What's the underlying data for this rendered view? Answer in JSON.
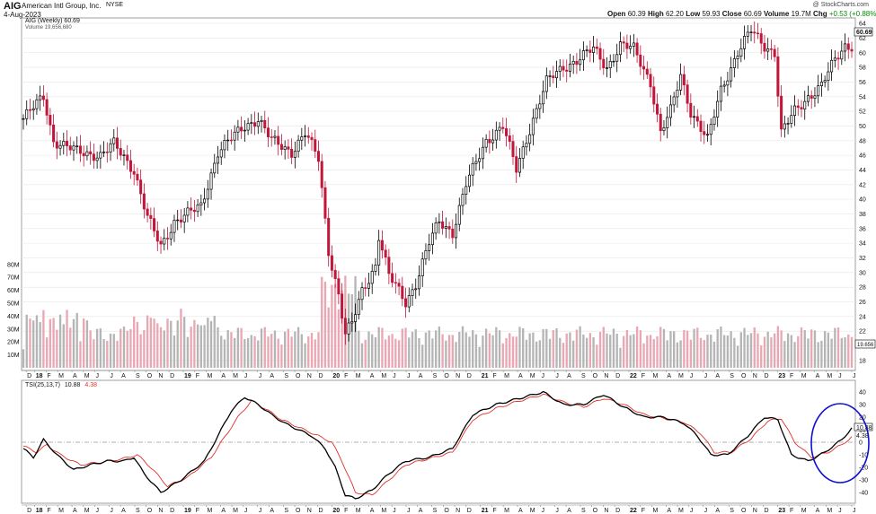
{
  "header": {
    "symbol": "AIG",
    "company": "American Intl Group, Inc.",
    "exchange": "NYSE",
    "date": "4-Aug-2023",
    "watermark": "@ StockCharts.com",
    "stats": {
      "open_label": "Open",
      "open": "60.39",
      "high_label": "High",
      "high": "62.20",
      "low_label": "Low",
      "low": "59.93",
      "close_label": "Close",
      "close": "60.69",
      "volume_label": "Volume",
      "volume": "19.7M",
      "chg_label": "Chg",
      "chg": "+0.53 (+0.88%)"
    }
  },
  "chart_data": [
    {
      "type": "candlestick",
      "legend": "AIG (Weekly) 60.69",
      "volume_legend": "Volume 19,656,680",
      "last_price_label": "60.69",
      "last_volume_label": "19.656",
      "price_ticks": [
        18,
        20,
        22,
        24,
        26,
        28,
        30,
        32,
        34,
        36,
        38,
        40,
        42,
        44,
        46,
        48,
        50,
        52,
        54,
        56,
        58,
        60,
        62,
        64
      ],
      "volume_ticks": [
        "10M",
        "20M",
        "30M",
        "40M",
        "50M",
        "60M",
        "70M",
        "80M"
      ],
      "ylim": [
        17,
        64.5
      ],
      "colors": {
        "up": "#000000",
        "down": "#c0163a",
        "vol_up": "#b5b5b5",
        "vol_down": "#e9a7b3"
      },
      "anchors": [
        [
          0,
          51
        ],
        [
          6,
          54
        ],
        [
          9,
          48
        ],
        [
          16,
          46.5
        ],
        [
          23,
          46
        ],
        [
          27,
          47.5
        ],
        [
          33,
          44
        ],
        [
          37,
          37.5
        ],
        [
          41,
          33.5
        ],
        [
          45,
          37
        ],
        [
          53,
          39
        ],
        [
          58,
          46.5
        ],
        [
          66,
          50
        ],
        [
          70,
          51
        ],
        [
          74,
          48
        ],
        [
          80,
          46.5
        ],
        [
          84,
          49
        ],
        [
          88,
          45.5
        ],
        [
          91,
          33
        ],
        [
          94,
          27
        ],
        [
          96,
          21.5
        ],
        [
          98,
          23
        ],
        [
          101,
          27.5
        ],
        [
          105,
          31
        ],
        [
          106,
          35
        ],
        [
          109,
          29.5
        ],
        [
          112,
          27.5
        ],
        [
          114,
          26
        ],
        [
          117,
          28.5
        ],
        [
          121,
          34
        ],
        [
          124,
          37
        ],
        [
          128,
          35.5
        ],
        [
          132,
          42
        ],
        [
          138,
          48
        ],
        [
          143,
          50
        ],
        [
          147,
          44
        ],
        [
          152,
          51
        ],
        [
          156,
          56
        ],
        [
          161,
          58
        ],
        [
          165,
          59
        ],
        [
          170,
          60.5
        ],
        [
          174,
          58
        ],
        [
          178,
          61
        ],
        [
          182,
          60.5
        ],
        [
          187,
          56
        ],
        [
          190,
          49
        ],
        [
          193,
          52
        ],
        [
          196,
          57
        ],
        [
          199,
          52
        ],
        [
          204,
          48
        ],
        [
          208,
          55
        ],
        [
          213,
          60
        ],
        [
          217,
          63
        ],
        [
          221,
          61
        ],
        [
          224,
          60
        ],
        [
          226,
          49
        ],
        [
          230,
          52
        ],
        [
          234,
          54
        ],
        [
          238,
          55.5
        ],
        [
          242,
          59
        ],
        [
          245,
          61
        ],
        [
          247,
          61
        ]
      ]
    },
    {
      "type": "line",
      "legend_prefix": "TSI(25,13,7)",
      "tsi_label": "10.88",
      "signal_label": "4.38",
      "yticks": [
        40,
        30,
        20,
        10,
        0,
        -10,
        -20,
        -30,
        -40
      ],
      "ylim": [
        -45,
        45
      ],
      "tsi_anchors": [
        [
          0,
          -5
        ],
        [
          3,
          -12
        ],
        [
          6,
          2
        ],
        [
          10,
          -10
        ],
        [
          15,
          -22
        ],
        [
          20,
          -18
        ],
        [
          25,
          -15
        ],
        [
          30,
          -15
        ],
        [
          33,
          -12
        ],
        [
          36,
          -25
        ],
        [
          41,
          -40
        ],
        [
          47,
          -30
        ],
        [
          54,
          -15
        ],
        [
          59,
          10
        ],
        [
          62,
          25
        ],
        [
          66,
          36
        ],
        [
          70,
          30
        ],
        [
          74,
          22
        ],
        [
          78,
          15
        ],
        [
          82,
          10
        ],
        [
          86,
          5
        ],
        [
          90,
          -5
        ],
        [
          93,
          -20
        ],
        [
          96,
          -42
        ],
        [
          99,
          -45
        ],
        [
          104,
          -38
        ],
        [
          109,
          -25
        ],
        [
          114,
          -15
        ],
        [
          121,
          -12
        ],
        [
          128,
          -5
        ],
        [
          134,
          22
        ],
        [
          141,
          30
        ],
        [
          148,
          35
        ],
        [
          155,
          40
        ],
        [
          161,
          30
        ],
        [
          167,
          30
        ],
        [
          173,
          38
        ],
        [
          179,
          28
        ],
        [
          185,
          20
        ],
        [
          191,
          20
        ],
        [
          197,
          15
        ],
        [
          201,
          5
        ],
        [
          205,
          -10
        ],
        [
          210,
          -10
        ],
        [
          216,
          5
        ],
        [
          221,
          20
        ],
        [
          225,
          18
        ],
        [
          229,
          -10
        ],
        [
          234,
          -15
        ],
        [
          239,
          -8
        ],
        [
          244,
          2
        ],
        [
          247,
          11
        ]
      ],
      "signal_anchors": [
        [
          0,
          -3
        ],
        [
          4,
          -8
        ],
        [
          7,
          -2
        ],
        [
          11,
          -10
        ],
        [
          17,
          -18
        ],
        [
          23,
          -16
        ],
        [
          30,
          -13
        ],
        [
          34,
          -10
        ],
        [
          38,
          -20
        ],
        [
          43,
          -35
        ],
        [
          49,
          -28
        ],
        [
          56,
          -12
        ],
        [
          61,
          8
        ],
        [
          64,
          20
        ],
        [
          68,
          33
        ],
        [
          72,
          27
        ],
        [
          77,
          18
        ],
        [
          82,
          12
        ],
        [
          88,
          5
        ],
        [
          92,
          0
        ],
        [
          95,
          -15
        ],
        [
          99,
          -40
        ],
        [
          104,
          -42
        ],
        [
          109,
          -30
        ],
        [
          114,
          -18
        ],
        [
          121,
          -13
        ],
        [
          128,
          -8
        ],
        [
          134,
          18
        ],
        [
          141,
          27
        ],
        [
          148,
          33
        ],
        [
          155,
          38
        ],
        [
          161,
          32
        ],
        [
          167,
          28
        ],
        [
          173,
          35
        ],
        [
          179,
          30
        ],
        [
          185,
          22
        ],
        [
          191,
          19
        ],
        [
          197,
          16
        ],
        [
          202,
          7
        ],
        [
          206,
          -8
        ],
        [
          211,
          -8
        ],
        [
          217,
          3
        ],
        [
          222,
          17
        ],
        [
          226,
          19
        ],
        [
          230,
          0
        ],
        [
          235,
          -12
        ],
        [
          240,
          -8
        ],
        [
          244,
          -2
        ],
        [
          247,
          4
        ]
      ],
      "colors": {
        "tsi": "#000000",
        "signal": "#e0302a",
        "highlight": "#1010d0"
      }
    }
  ],
  "time_axis": {
    "labels": [
      {
        "t": "D",
        "w": 1
      },
      {
        "t": "18",
        "w": 4,
        "bold": true
      },
      {
        "t": "F",
        "w": 8
      },
      {
        "t": "M",
        "w": 12
      },
      {
        "t": "A",
        "w": 17
      },
      {
        "t": "M",
        "w": 21
      },
      {
        "t": "J",
        "w": 25
      },
      {
        "t": "J",
        "w": 30
      },
      {
        "t": "A",
        "w": 34
      },
      {
        "t": "S",
        "w": 39
      },
      {
        "t": "O",
        "w": 43
      },
      {
        "t": "N",
        "w": 47
      },
      {
        "t": "D",
        "w": 51
      },
      {
        "t": "19",
        "w": 56,
        "bold": true
      },
      {
        "t": "F",
        "w": 60
      },
      {
        "t": "M",
        "w": 64
      },
      {
        "t": "A",
        "w": 69
      },
      {
        "t": "M",
        "w": 73
      },
      {
        "t": "J",
        "w": 77
      },
      {
        "t": "J",
        "w": 82
      },
      {
        "t": "A",
        "w": 86
      },
      {
        "t": "S",
        "w": 91
      },
      {
        "t": "O",
        "w": 95
      },
      {
        "t": "N",
        "w": 99
      },
      {
        "t": "D",
        "w": 103
      },
      {
        "t": "20",
        "w": 108,
        "bold": true
      },
      {
        "t": "F",
        "w": 112
      },
      {
        "t": "M",
        "w": 116
      },
      {
        "t": "A",
        "w": 121
      },
      {
        "t": "M",
        "w": 125
      },
      {
        "t": "J",
        "w": 129
      },
      {
        "t": "J",
        "w": 134
      },
      {
        "t": "A",
        "w": 138
      },
      {
        "t": "S",
        "w": 143
      },
      {
        "t": "O",
        "w": 147
      },
      {
        "t": "N",
        "w": 151
      },
      {
        "t": "D",
        "w": 155
      },
      {
        "t": "21",
        "w": 160,
        "bold": true
      },
      {
        "t": "F",
        "w": 164
      },
      {
        "t": "M",
        "w": 168
      },
      {
        "t": "A",
        "w": 173
      },
      {
        "t": "M",
        "w": 177
      },
      {
        "t": "J",
        "w": 181
      },
      {
        "t": "J",
        "w": 186
      },
      {
        "t": "A",
        "w": 190
      },
      {
        "t": "S",
        "w": 195
      },
      {
        "t": "O",
        "w": 199
      },
      {
        "t": "N",
        "w": 203
      },
      {
        "t": "D",
        "w": 207
      },
      {
        "t": "22",
        "w": 212,
        "bold": true
      },
      {
        "t": "F",
        "w": 216
      },
      {
        "t": "M",
        "w": 220
      },
      {
        "t": "A",
        "w": 225
      },
      {
        "t": "M",
        "w": 229
      },
      {
        "t": "J",
        "w": 233
      },
      {
        "t": "J",
        "w": 238
      },
      {
        "t": "A",
        "w": 242
      },
      {
        "t": "S",
        "w": 247
      },
      {
        "t": "O",
        "w": 251
      },
      {
        "t": "N",
        "w": 255
      },
      {
        "t": "D",
        "w": 259
      },
      {
        "t": "23",
        "w": 264,
        "bold": true
      },
      {
        "t": "F",
        "w": 268
      },
      {
        "t": "M",
        "w": 272
      },
      {
        "t": "A",
        "w": 277
      },
      {
        "t": "M",
        "w": 281
      },
      {
        "t": "J",
        "w": 285
      },
      {
        "t": "J",
        "w": 290
      }
    ]
  }
}
